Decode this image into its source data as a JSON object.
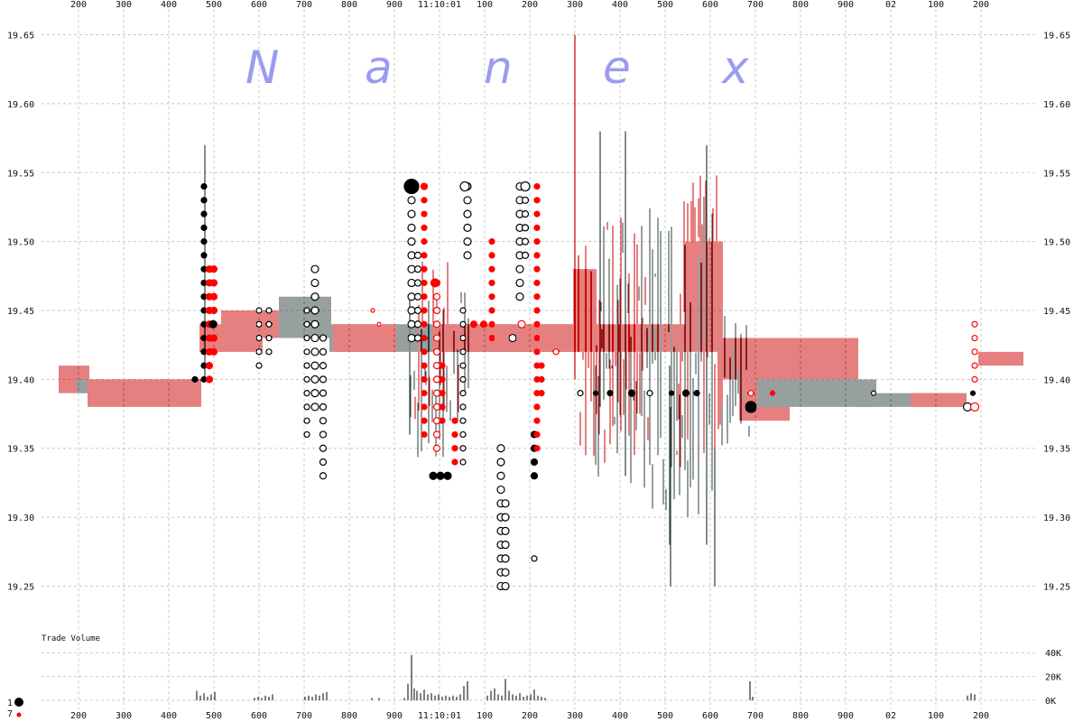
{
  "chart_data": {
    "type": "scatter",
    "watermark": [
      "N",
      "a",
      "n",
      "e",
      "x"
    ],
    "x_ticks_top": [
      "200",
      "300",
      "400",
      "500",
      "600",
      "700",
      "800",
      "900",
      "11:10:01",
      "100",
      "200",
      "300",
      "400",
      "500",
      "600",
      "700",
      "800",
      "900",
      "02",
      "100",
      "200"
    ],
    "x_ticks_bottom": [
      "200",
      "300",
      "400",
      "500",
      "600",
      "700",
      "800",
      "900",
      "11:10:01",
      "100",
      "200",
      "300",
      "400",
      "500",
      "600",
      "700",
      "800",
      "900",
      "02",
      "100",
      "200"
    ],
    "y_ticks": [
      "19.65",
      "19.60",
      "19.55",
      "19.50",
      "19.45",
      "19.40",
      "19.35",
      "19.30",
      "19.25"
    ],
    "ylim": [
      19.23,
      19.67
    ],
    "volume_label": "Trade Volume",
    "volume_ticks": [
      "40K",
      "20K",
      "0K"
    ],
    "volume_max": 50,
    "legend": [
      {
        "label": "1",
        "color": "#000000"
      },
      {
        "label": "7",
        "color": "#ff0000"
      }
    ],
    "colors": {
      "bid": "#cc0000",
      "ask": "#2f3f3f",
      "trade_black": "#000000",
      "trade_red": "#ff0000",
      "grid": "#c8c8c8"
    },
    "quote_bands": [
      {
        "x0": 66,
        "x1": 98,
        "lo": 19.39,
        "hi": 19.41,
        "c": "bid"
      },
      {
        "x0": 86,
        "x1": 222,
        "lo": 19.39,
        "hi": 19.4,
        "c": "ask"
      },
      {
        "x0": 98,
        "x1": 222,
        "lo": 19.38,
        "hi": 19.4,
        "c": "bid"
      },
      {
        "x0": 222,
        "x1": 246,
        "lo": 19.42,
        "hi": 19.44,
        "c": "bid"
      },
      {
        "x0": 246,
        "x1": 290,
        "lo": 19.42,
        "hi": 19.45,
        "c": "bid"
      },
      {
        "x0": 290,
        "x1": 330,
        "lo": 19.43,
        "hi": 19.45,
        "c": "bid"
      },
      {
        "x0": 310,
        "x1": 366,
        "lo": 19.43,
        "hi": 19.46,
        "c": "ask"
      },
      {
        "x0": 366,
        "x1": 440,
        "lo": 19.42,
        "hi": 19.44,
        "c": "ask"
      },
      {
        "x0": 370,
        "x1": 440,
        "lo": 19.42,
        "hi": 19.44,
        "c": "bid"
      },
      {
        "x0": 440,
        "x1": 636,
        "lo": 19.42,
        "hi": 19.44,
        "c": "ask"
      },
      {
        "x0": 480,
        "x1": 636,
        "lo": 19.42,
        "hi": 19.44,
        "c": "bid"
      },
      {
        "x0": 636,
        "x1": 660,
        "lo": 19.42,
        "hi": 19.48,
        "c": "bid"
      },
      {
        "x0": 660,
        "x1": 760,
        "lo": 19.42,
        "hi": 19.44,
        "c": "bid"
      },
      {
        "x0": 760,
        "x1": 800,
        "lo": 19.42,
        "hi": 19.5,
        "c": "bid"
      },
      {
        "x0": 800,
        "x1": 950,
        "lo": 19.4,
        "hi": 19.43,
        "c": "bid"
      },
      {
        "x0": 820,
        "x1": 875,
        "lo": 19.37,
        "hi": 19.4,
        "c": "bid"
      },
      {
        "x0": 840,
        "x1": 970,
        "lo": 19.38,
        "hi": 19.4,
        "c": "ask"
      },
      {
        "x0": 950,
        "x1": 1070,
        "lo": 19.38,
        "hi": 19.39,
        "c": "ask"
      },
      {
        "x0": 1010,
        "x1": 1070,
        "lo": 19.38,
        "hi": 19.39,
        "c": "bid"
      },
      {
        "x0": 1085,
        "x1": 1133,
        "lo": 19.41,
        "hi": 19.42,
        "c": "bid"
      }
    ],
    "quote_spikes": [
      {
        "x": 637,
        "lo": 19.4,
        "hi": 19.65,
        "c": "bid"
      },
      {
        "x": 641,
        "lo": 19.42,
        "hi": 19.49,
        "c": "bid"
      },
      {
        "x": 665,
        "lo": 19.38,
        "hi": 19.58,
        "c": "ask"
      },
      {
        "x": 693,
        "lo": 19.33,
        "hi": 19.58,
        "c": "ask"
      },
      {
        "x": 742,
        "lo": 19.28,
        "hi": 19.41,
        "c": "ask"
      },
      {
        "x": 743,
        "lo": 19.25,
        "hi": 19.38,
        "c": "ask"
      },
      {
        "x": 783,
        "lo": 19.28,
        "hi": 19.57,
        "c": "ask"
      },
      {
        "x": 792,
        "lo": 19.25,
        "hi": 19.35,
        "c": "ask"
      },
      {
        "x": 227,
        "lo": 19.4,
        "hi": 19.57,
        "c": "ask"
      },
      {
        "x": 454,
        "lo": 19.36,
        "hi": 19.46,
        "c": "ask"
      }
    ],
    "noise_zones": [
      {
        "x0": 640,
        "x1": 720,
        "lo": 19.33,
        "hi": 19.52,
        "c": "bid",
        "step": 3
      },
      {
        "x0": 660,
        "x1": 730,
        "lo": 19.32,
        "hi": 19.52,
        "c": "ask",
        "step": 3
      },
      {
        "x0": 720,
        "x1": 790,
        "lo": 19.3,
        "hi": 19.55,
        "c": "ask",
        "step": 3
      },
      {
        "x0": 750,
        "x1": 800,
        "lo": 19.33,
        "hi": 19.55,
        "c": "bid",
        "step": 2
      },
      {
        "x0": 800,
        "x1": 830,
        "lo": 19.35,
        "hi": 19.45,
        "c": "ask",
        "step": 3
      },
      {
        "x0": 455,
        "x1": 520,
        "lo": 19.34,
        "hi": 19.47,
        "c": "ask",
        "step": 4
      },
      {
        "x0": 460,
        "x1": 510,
        "lo": 19.36,
        "hi": 19.49,
        "c": "bid",
        "step": 4
      }
    ],
    "trade_columns": [
      {
        "x": 216,
        "lo": 19.4,
        "hi": 19.4,
        "step": 0.01,
        "r": 3,
        "c": "trade_black",
        "fill": true
      },
      {
        "x": 226,
        "lo": 19.4,
        "hi": 19.54,
        "step": 0.01,
        "r": 3,
        "c": "trade_black",
        "fill": true
      },
      {
        "x": 232,
        "lo": 19.4,
        "hi": 19.48,
        "step": 0.01,
        "r": 3.5,
        "c": "trade_red",
        "fill": true
      },
      {
        "x": 237,
        "lo": 19.42,
        "hi": 19.48,
        "step": 0.01,
        "r": 3.5,
        "c": "trade_red",
        "fill": true
      },
      {
        "x": 287,
        "lo": 19.41,
        "hi": 19.45,
        "step": 0.01,
        "r": 3,
        "c": "trade_black",
        "fill": false
      },
      {
        "x": 298,
        "lo": 19.42,
        "hi": 19.45,
        "step": 0.01,
        "r": 3,
        "c": "trade_black",
        "fill": false
      },
      {
        "x": 340,
        "lo": 19.36,
        "hi": 19.45,
        "step": 0.01,
        "r": 3,
        "c": "trade_black",
        "fill": false
      },
      {
        "x": 349,
        "lo": 19.38,
        "hi": 19.48,
        "step": 0.01,
        "r": 4,
        "c": "trade_black",
        "fill": false
      },
      {
        "x": 358,
        "lo": 19.33,
        "hi": 19.43,
        "step": 0.01,
        "r": 3.5,
        "c": "trade_black",
        "fill": false
      },
      {
        "x": 456,
        "lo": 19.43,
        "hi": 19.54,
        "step": 0.01,
        "r": 4,
        "c": "trade_black",
        "fill": false
      },
      {
        "x": 463,
        "lo": 19.43,
        "hi": 19.49,
        "step": 0.01,
        "r": 3.5,
        "c": "trade_black",
        "fill": false
      },
      {
        "x": 470,
        "lo": 19.36,
        "hi": 19.54,
        "step": 0.01,
        "r": 3,
        "c": "trade_red",
        "fill": true
      },
      {
        "x": 484,
        "lo": 19.35,
        "hi": 19.47,
        "step": 0.01,
        "r": 3.5,
        "c": "trade_red",
        "fill": false
      },
      {
        "x": 490,
        "lo": 19.37,
        "hi": 19.41,
        "step": 0.01,
        "r": 3,
        "c": "trade_red",
        "fill": true
      },
      {
        "x": 504,
        "lo": 19.34,
        "hi": 19.37,
        "step": 0.01,
        "r": 3,
        "c": "trade_red",
        "fill": true
      },
      {
        "x": 513,
        "lo": 19.34,
        "hi": 19.45,
        "step": 0.01,
        "r": 3,
        "c": "trade_black",
        "fill": false
      },
      {
        "x": 518,
        "lo": 19.49,
        "hi": 19.54,
        "step": 0.01,
        "r": 4,
        "c": "trade_black",
        "fill": false
      },
      {
        "x": 545,
        "lo": 19.43,
        "hi": 19.5,
        "step": 0.01,
        "r": 3,
        "c": "trade_red",
        "fill": true
      },
      {
        "x": 555,
        "lo": 19.25,
        "hi": 19.35,
        "step": 0.01,
        "r": 4,
        "c": "trade_black",
        "fill": false
      },
      {
        "x": 560,
        "lo": 19.25,
        "hi": 19.31,
        "step": 0.01,
        "r": 4,
        "c": "trade_black",
        "fill": false
      },
      {
        "x": 576,
        "lo": 19.46,
        "hi": 19.54,
        "step": 0.01,
        "r": 4,
        "c": "trade_black",
        "fill": false
      },
      {
        "x": 582,
        "lo": 19.49,
        "hi": 19.54,
        "step": 0.01,
        "r": 3.5,
        "c": "trade_black",
        "fill": false
      },
      {
        "x": 592,
        "lo": 19.33,
        "hi": 19.36,
        "step": 0.01,
        "r": 3.5,
        "c": "trade_black",
        "fill": true
      },
      {
        "x": 595,
        "lo": 19.35,
        "hi": 19.54,
        "step": 0.01,
        "r": 3,
        "c": "trade_red",
        "fill": true
      },
      {
        "x": 600,
        "lo": 19.39,
        "hi": 19.41,
        "step": 0.01,
        "r": 3,
        "c": "trade_red",
        "fill": true
      }
    ],
    "trade_dots": [
      {
        "x": 456,
        "y": 19.54,
        "r": 8,
        "c": "trade_black",
        "fill": true
      },
      {
        "x": 470,
        "y": 19.54,
        "r": 3.5,
        "c": "trade_red",
        "fill": true
      },
      {
        "x": 482,
        "y": 19.47,
        "r": 4.5,
        "c": "trade_red",
        "fill": true
      },
      {
        "x": 515,
        "y": 19.54,
        "r": 5,
        "c": "trade_black",
        "fill": false
      },
      {
        "x": 582,
        "y": 19.54,
        "r": 5,
        "c": "trade_black",
        "fill": false
      },
      {
        "x": 413,
        "y": 19.45,
        "r": 2,
        "c": "trade_red",
        "fill": false
      },
      {
        "x": 420,
        "y": 19.44,
        "r": 2,
        "c": "trade_red",
        "fill": false
      },
      {
        "x": 236,
        "y": 19.44,
        "r": 4,
        "c": "trade_black",
        "fill": true
      },
      {
        "x": 568,
        "y": 19.43,
        "r": 4,
        "c": "trade_black",
        "fill": false
      },
      {
        "x": 578,
        "y": 19.44,
        "r": 4,
        "c": "trade_red",
        "fill": false
      },
      {
        "x": 616,
        "y": 19.42,
        "r": 3,
        "c": "trade_red",
        "fill": false
      },
      {
        "x": 643,
        "y": 19.39,
        "r": 3,
        "c": "trade_black",
        "fill": false
      },
      {
        "x": 660,
        "y": 19.39,
        "r": 2.5,
        "c": "trade_black",
        "fill": true
      },
      {
        "x": 676,
        "y": 19.39,
        "r": 3,
        "c": "trade_black",
        "fill": true
      },
      {
        "x": 700,
        "y": 19.39,
        "r": 3.5,
        "c": "trade_black",
        "fill": true
      },
      {
        "x": 720,
        "y": 19.39,
        "r": 3,
        "c": "trade_black",
        "fill": false
      },
      {
        "x": 744,
        "y": 19.39,
        "r": 2.5,
        "c": "trade_black",
        "fill": true
      },
      {
        "x": 760,
        "y": 19.39,
        "r": 3.5,
        "c": "trade_black",
        "fill": true
      },
      {
        "x": 772,
        "y": 19.39,
        "r": 3,
        "c": "trade_black",
        "fill": true
      },
      {
        "x": 832,
        "y": 19.38,
        "r": 6,
        "c": "trade_black",
        "fill": true
      },
      {
        "x": 832,
        "y": 19.39,
        "r": 3,
        "c": "trade_red",
        "fill": false
      },
      {
        "x": 856,
        "y": 19.39,
        "r": 2.5,
        "c": "trade_red",
        "fill": true
      },
      {
        "x": 968,
        "y": 19.39,
        "r": 2.5,
        "c": "trade_black",
        "fill": false
      },
      {
        "x": 1072,
        "y": 19.38,
        "r": 4.5,
        "c": "trade_black",
        "fill": false
      },
      {
        "x": 1078,
        "y": 19.39,
        "r": 2.5,
        "c": "trade_black",
        "fill": true
      },
      {
        "x": 1080,
        "y": 19.38,
        "r": 4.5,
        "c": "trade_red",
        "fill": false
      },
      {
        "x": 1080,
        "y": 19.4,
        "r": 3,
        "c": "trade_red",
        "fill": false
      },
      {
        "x": 1080,
        "y": 19.41,
        "r": 3,
        "c": "trade_red",
        "fill": false
      },
      {
        "x": 1080,
        "y": 19.42,
        "r": 3,
        "c": "trade_red",
        "fill": false
      },
      {
        "x": 1080,
        "y": 19.43,
        "r": 3,
        "c": "trade_red",
        "fill": false
      },
      {
        "x": 1080,
        "y": 19.44,
        "r": 3,
        "c": "trade_red",
        "fill": false
      },
      {
        "x": 525,
        "y": 19.44,
        "r": 3.5,
        "c": "trade_red",
        "fill": true
      },
      {
        "x": 536,
        "y": 19.44,
        "r": 3.5,
        "c": "trade_red",
        "fill": true
      },
      {
        "x": 480,
        "y": 19.33,
        "r": 4,
        "c": "trade_black",
        "fill": true
      },
      {
        "x": 488,
        "y": 19.33,
        "r": 4,
        "c": "trade_black",
        "fill": true
      },
      {
        "x": 496,
        "y": 19.33,
        "r": 4,
        "c": "trade_black",
        "fill": true
      },
      {
        "x": 560,
        "y": 19.27,
        "r": 4,
        "c": "trade_black",
        "fill": false
      },
      {
        "x": 592,
        "y": 19.27,
        "r": 3,
        "c": "trade_black",
        "fill": false
      }
    ],
    "volume_bars": [
      {
        "x": 218,
        "v": 8
      },
      {
        "x": 222,
        "v": 4
      },
      {
        "x": 226,
        "v": 6
      },
      {
        "x": 230,
        "v": 3
      },
      {
        "x": 234,
        "v": 5
      },
      {
        "x": 238,
        "v": 7
      },
      {
        "x": 282,
        "v": 2
      },
      {
        "x": 286,
        "v": 3
      },
      {
        "x": 290,
        "v": 2
      },
      {
        "x": 294,
        "v": 4
      },
      {
        "x": 298,
        "v": 3
      },
      {
        "x": 302,
        "v": 5
      },
      {
        "x": 338,
        "v": 3
      },
      {
        "x": 342,
        "v": 4
      },
      {
        "x": 346,
        "v": 3
      },
      {
        "x": 350,
        "v": 5
      },
      {
        "x": 354,
        "v": 4
      },
      {
        "x": 358,
        "v": 6
      },
      {
        "x": 362,
        "v": 7
      },
      {
        "x": 412,
        "v": 2
      },
      {
        "x": 420,
        "v": 2
      },
      {
        "x": 448,
        "v": 2
      },
      {
        "x": 452,
        "v": 14
      },
      {
        "x": 456,
        "v": 38
      },
      {
        "x": 459,
        "v": 10
      },
      {
        "x": 462,
        "v": 8
      },
      {
        "x": 466,
        "v": 6
      },
      {
        "x": 470,
        "v": 9
      },
      {
        "x": 474,
        "v": 5
      },
      {
        "x": 478,
        "v": 6
      },
      {
        "x": 482,
        "v": 4
      },
      {
        "x": 486,
        "v": 5
      },
      {
        "x": 490,
        "v": 3
      },
      {
        "x": 494,
        "v": 4
      },
      {
        "x": 498,
        "v": 3
      },
      {
        "x": 502,
        "v": 4
      },
      {
        "x": 506,
        "v": 3
      },
      {
        "x": 510,
        "v": 5
      },
      {
        "x": 514,
        "v": 12
      },
      {
        "x": 518,
        "v": 16
      },
      {
        "x": 540,
        "v": 4
      },
      {
        "x": 544,
        "v": 8
      },
      {
        "x": 548,
        "v": 10
      },
      {
        "x": 552,
        "v": 5
      },
      {
        "x": 556,
        "v": 4
      },
      {
        "x": 560,
        "v": 18
      },
      {
        "x": 564,
        "v": 8
      },
      {
        "x": 568,
        "v": 5
      },
      {
        "x": 572,
        "v": 4
      },
      {
        "x": 576,
        "v": 6
      },
      {
        "x": 580,
        "v": 3
      },
      {
        "x": 584,
        "v": 4
      },
      {
        "x": 588,
        "v": 5
      },
      {
        "x": 592,
        "v": 9
      },
      {
        "x": 596,
        "v": 4
      },
      {
        "x": 600,
        "v": 3
      },
      {
        "x": 604,
        "v": 2
      },
      {
        "x": 831,
        "v": 16
      },
      {
        "x": 834,
        "v": 3
      },
      {
        "x": 1072,
        "v": 4
      },
      {
        "x": 1076,
        "v": 6
      },
      {
        "x": 1080,
        "v": 5
      }
    ]
  }
}
